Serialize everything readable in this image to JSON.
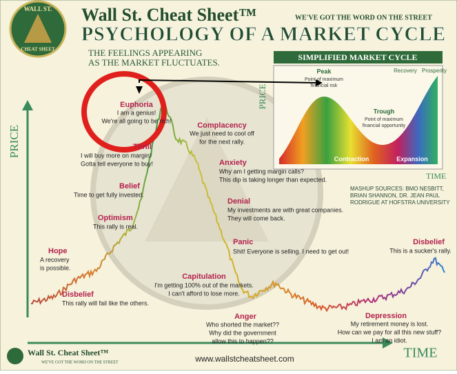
{
  "header": {
    "logo_top": "WALL ST.",
    "logo_bottom": "CHEAT SHEET",
    "brand": "Wall St. Cheat Sheet™",
    "tagline": "We've got the word on the street",
    "title": "Psychology of a Market Cycle",
    "subtitle": [
      "The feelings appearing",
      "as the market fluctuates."
    ]
  },
  "inset": {
    "title": "Simplified Market Cycle",
    "y_label": "PRICE",
    "x_label": "TIME",
    "peak": "Peak",
    "peak_note": [
      "Point of maximum",
      "financial risk"
    ],
    "trough": "Trough",
    "trough_note": [
      "Point of maximum",
      "financial opportunity"
    ],
    "recovery": "Recovery",
    "prosperity": "Prosperity",
    "contraction": "Contraction",
    "expansion": "Expansion"
  },
  "sources": [
    "Mashup Sources: BMO Nesbitt,",
    "Brian Shannon, Dr. Jean Paul",
    "Rodrigue at Hofstra University"
  ],
  "axes": {
    "y": "PRICE",
    "x": "TIME"
  },
  "stages": [
    {
      "name": "Hope",
      "quote": [
        "A recovery",
        "is possible."
      ]
    },
    {
      "name": "Disbelief",
      "quote": [
        "This rally will fail like the others."
      ]
    },
    {
      "name": "Optimism",
      "quote": [
        "This rally is real."
      ]
    },
    {
      "name": "Belief",
      "quote": [
        "Time to get fully invested."
      ]
    },
    {
      "name": "Thrill",
      "quote": [
        "I will buy more on margin!",
        "Gotta tell everyone to buy!"
      ]
    },
    {
      "name": "Euphoria",
      "quote": [
        "I am a genius!",
        "We're all going to be rich!"
      ]
    },
    {
      "name": "Complacency",
      "quote": [
        "We just need to cool off",
        "for the next rally."
      ]
    },
    {
      "name": "Anxiety",
      "quote": [
        "Why am I getting margin calls?",
        "This dip is taking longer than expected."
      ]
    },
    {
      "name": "Denial",
      "quote": [
        "My investments are with great companies.",
        "They will come back."
      ]
    },
    {
      "name": "Panic",
      "quote": [
        "Shit! Everyone is selling. I need to get out!"
      ]
    },
    {
      "name": "Capitulation",
      "quote": [
        "I'm getting 100% out of the markets.",
        "I can't afford to lose more."
      ]
    },
    {
      "name": "Anger",
      "quote": [
        "Who shorted the market??",
        "Why did the government",
        "allow this to happen??"
      ]
    },
    {
      "name": "Depression",
      "quote": [
        "My retirement money is lost.",
        "How can we pay for all this new stuff?",
        "I am an idiot."
      ]
    },
    {
      "name": "Disbelief",
      "quote": [
        "This is a sucker's rally."
      ]
    }
  ],
  "footer": {
    "brand": "Wall St. Cheat Sheet™",
    "tagline": "We've got the word on the street",
    "url": "www.wallstcheatsheet.com"
  }
}
